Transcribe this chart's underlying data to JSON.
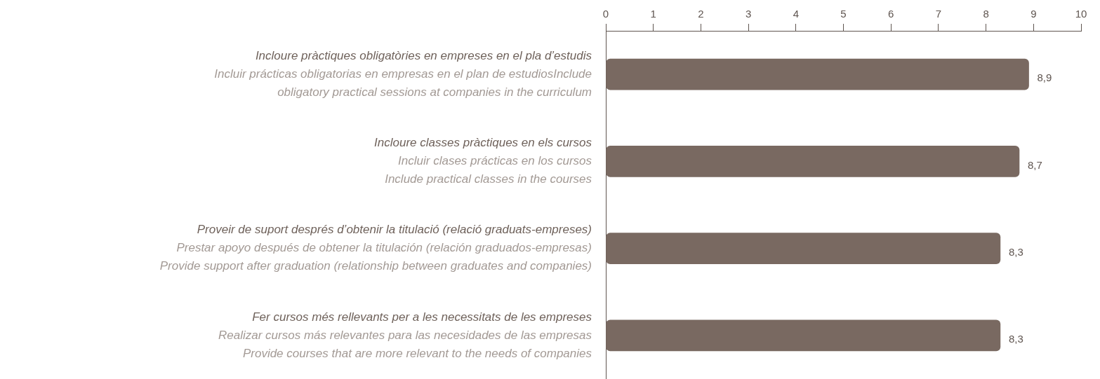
{
  "chart_data": {
    "type": "bar",
    "orientation": "horizontal",
    "categories": [
      "Incloure pràctiques obligatòries en empreses en el pla d’estudis\nIncluir prácticas obligatorias en empresas en el plan de estudiosInclude\nobligatory practical sessions at companies in the curriculum",
      "Incloure classes pràctiques en els cursos\nIncluir clases prácticas en los cursos\nInclude practical classes in the courses",
      "Proveir de suport després d’obtenir la titulació (relació graduats-empreses)\nPrestar apoyo después de obtener la titulación (relación graduados-empresas)\nProvide support after graduation (relationship between graduates and companies)",
      "Fer cursos més rellevants per a les necessitats de les empreses\nRealizar cursos más relevantes para las necesidades de las empresas\nProvide courses that are more relevant to the needs of companies"
    ],
    "values": [
      8.9,
      8.7,
      8.3,
      8.3
    ],
    "value_labels": [
      "8,9",
      "8,7",
      "8,3",
      "8,3"
    ],
    "color": "#796961",
    "xlim": [
      0,
      10
    ],
    "xticks": [
      0,
      1,
      2,
      3,
      4,
      5,
      6,
      7,
      8,
      9,
      10
    ]
  }
}
